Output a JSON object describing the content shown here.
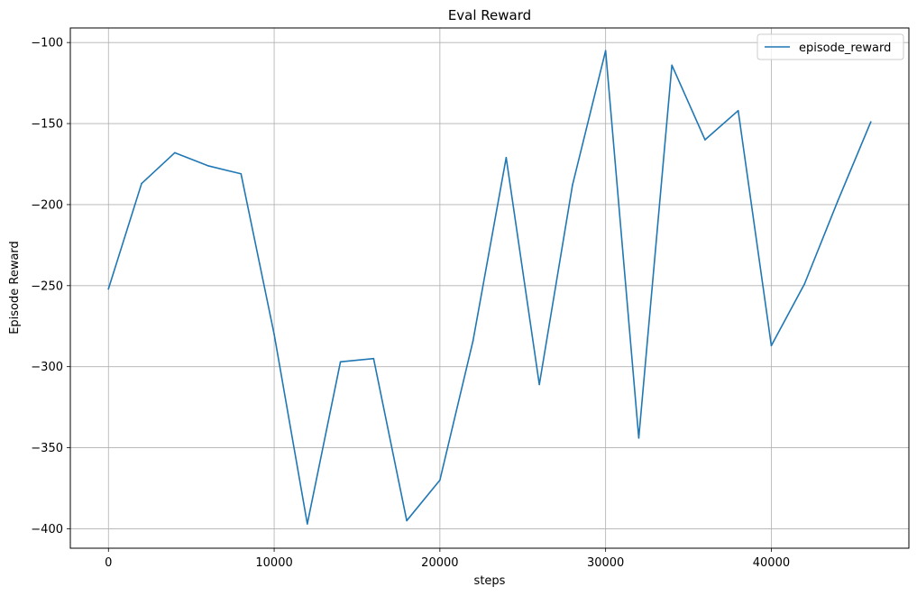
{
  "chart_data": {
    "type": "line",
    "title": "Eval Reward",
    "xlabel": "steps",
    "ylabel": "Episode Reward",
    "xlim": [
      -2300,
      48300
    ],
    "ylim": [
      -412,
      -91
    ],
    "xticks": [
      0,
      10000,
      20000,
      30000,
      40000
    ],
    "yticks": [
      -100,
      -150,
      -200,
      -250,
      -300,
      -350,
      -400
    ],
    "grid": true,
    "legend_position": "top-right",
    "series": [
      {
        "name": "episode_reward",
        "color": "#1f77b4",
        "x": [
          0,
          2000,
          4000,
          6000,
          8000,
          10000,
          12000,
          14000,
          16000,
          18000,
          20000,
          22000,
          24000,
          26000,
          28000,
          30000,
          32000,
          34000,
          36000,
          38000,
          40000,
          42000,
          44000,
          46000
        ],
        "y": [
          -252,
          -187,
          -168,
          -176,
          -181,
          -280,
          -397,
          -297,
          -295,
          -395,
          -370,
          -284,
          -171,
          -311,
          -188,
          -105,
          -344,
          -114,
          -160,
          -142,
          -287,
          -249,
          -198,
          -149
        ]
      }
    ]
  }
}
